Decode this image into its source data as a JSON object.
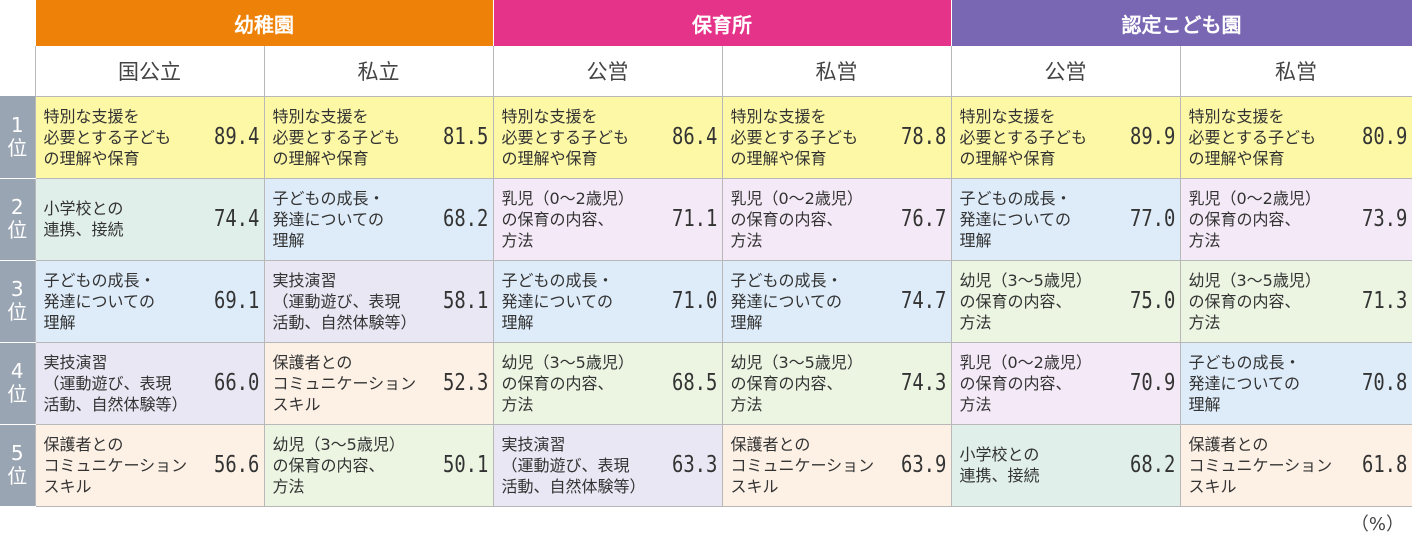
{
  "groups": [
    {
      "label": "幼稚園",
      "color": "#ee8208"
    },
    {
      "label": "保育所",
      "color": "#e5338a"
    },
    {
      "label": "認定こども園",
      "color": "#7a67b4"
    }
  ],
  "subheaders": [
    "国公立",
    "私立",
    "公営",
    "私営",
    "公営",
    "私営"
  ],
  "rank_labels": [
    [
      "1",
      "位"
    ],
    [
      "2",
      "位"
    ],
    [
      "3",
      "位"
    ],
    [
      "4",
      "位"
    ],
    [
      "5",
      "位"
    ]
  ],
  "category_colors": {
    "special_support": "#fdf8a6",
    "elementary": "#e0efe9",
    "growth": "#deecf9",
    "practice": "#e9e7f3",
    "parents": "#fdf1e6",
    "infant": "#f4e9f7",
    "toddler": "#ebf5e2"
  },
  "rows": [
    [
      {
        "lines": [
          "特別な支援を",
          "必要とする子ども",
          "の理解や保育"
        ],
        "value": "89.4",
        "cat": "special_support"
      },
      {
        "lines": [
          "特別な支援を",
          "必要とする子ども",
          "の理解や保育"
        ],
        "value": "81.5",
        "cat": "special_support"
      },
      {
        "lines": [
          "特別な支援を",
          "必要とする子ども",
          "の理解や保育"
        ],
        "value": "86.4",
        "cat": "special_support"
      },
      {
        "lines": [
          "特別な支援を",
          "必要とする子ども",
          "の理解や保育"
        ],
        "value": "78.8",
        "cat": "special_support"
      },
      {
        "lines": [
          "特別な支援を",
          "必要とする子ども",
          "の理解や保育"
        ],
        "value": "89.9",
        "cat": "special_support"
      },
      {
        "lines": [
          "特別な支援を",
          "必要とする子ども",
          "の理解や保育"
        ],
        "value": "80.9",
        "cat": "special_support"
      }
    ],
    [
      {
        "lines": [
          "小学校との",
          "連携、接続"
        ],
        "value": "74.4",
        "cat": "elementary"
      },
      {
        "lines": [
          "子どもの成長・",
          "発達についての",
          "理解"
        ],
        "value": "68.2",
        "cat": "growth"
      },
      {
        "lines": [
          "乳児（0～2歳児）",
          "の保育の内容、",
          "方法"
        ],
        "value": "71.1",
        "cat": "infant"
      },
      {
        "lines": [
          "乳児（0～2歳児）",
          "の保育の内容、",
          "方法"
        ],
        "value": "76.7",
        "cat": "infant"
      },
      {
        "lines": [
          "子どもの成長・",
          "発達についての",
          "理解"
        ],
        "value": "77.0",
        "cat": "growth"
      },
      {
        "lines": [
          "乳児（0～2歳児）",
          "の保育の内容、",
          "方法"
        ],
        "value": "73.9",
        "cat": "infant"
      }
    ],
    [
      {
        "lines": [
          "子どもの成長・",
          "発達についての",
          "理解"
        ],
        "value": "69.1",
        "cat": "growth"
      },
      {
        "lines": [
          "実技演習",
          "（運動遊び、表現",
          "活動、自然体験等）"
        ],
        "value": "58.1",
        "cat": "practice"
      },
      {
        "lines": [
          "子どもの成長・",
          "発達についての",
          "理解"
        ],
        "value": "71.0",
        "cat": "growth"
      },
      {
        "lines": [
          "子どもの成長・",
          "発達についての",
          "理解"
        ],
        "value": "74.7",
        "cat": "growth"
      },
      {
        "lines": [
          "幼児（3～5歳児）",
          "の保育の内容、",
          "方法"
        ],
        "value": "75.0",
        "cat": "toddler"
      },
      {
        "lines": [
          "幼児（3～5歳児）",
          "の保育の内容、",
          "方法"
        ],
        "value": "71.3",
        "cat": "toddler"
      }
    ],
    [
      {
        "lines": [
          "実技演習",
          "（運動遊び、表現",
          "活動、自然体験等）"
        ],
        "value": "66.0",
        "cat": "practice"
      },
      {
        "lines": [
          "保護者との",
          "コミュニケーション",
          "スキル"
        ],
        "value": "52.3",
        "cat": "parents"
      },
      {
        "lines": [
          "幼児（3～5歳児）",
          "の保育の内容、",
          "方法"
        ],
        "value": "68.5",
        "cat": "toddler"
      },
      {
        "lines": [
          "幼児（3～5歳児）",
          "の保育の内容、",
          "方法"
        ],
        "value": "74.3",
        "cat": "toddler"
      },
      {
        "lines": [
          "乳児（0～2歳児）",
          "の保育の内容、",
          "方法"
        ],
        "value": "70.9",
        "cat": "infant"
      },
      {
        "lines": [
          "子どもの成長・",
          "発達についての",
          "理解"
        ],
        "value": "70.8",
        "cat": "growth"
      }
    ],
    [
      {
        "lines": [
          "保護者との",
          "コミュニケーション",
          "スキル"
        ],
        "value": "56.6",
        "cat": "parents"
      },
      {
        "lines": [
          "幼児（3～5歳児）",
          "の保育の内容、",
          "方法"
        ],
        "value": "50.1",
        "cat": "toddler"
      },
      {
        "lines": [
          "実技演習",
          "（運動遊び、表現",
          "活動、自然体験等）"
        ],
        "value": "63.3",
        "cat": "practice"
      },
      {
        "lines": [
          "保護者との",
          "コミュニケーション",
          "スキル"
        ],
        "value": "63.9",
        "cat": "parents"
      },
      {
        "lines": [
          "小学校との",
          "連携、接続"
        ],
        "value": "68.2",
        "cat": "elementary"
      },
      {
        "lines": [
          "保護者との",
          "コミュニケーション",
          "スキル"
        ],
        "value": "61.8",
        "cat": "parents"
      }
    ]
  ],
  "unit": "（%）"
}
